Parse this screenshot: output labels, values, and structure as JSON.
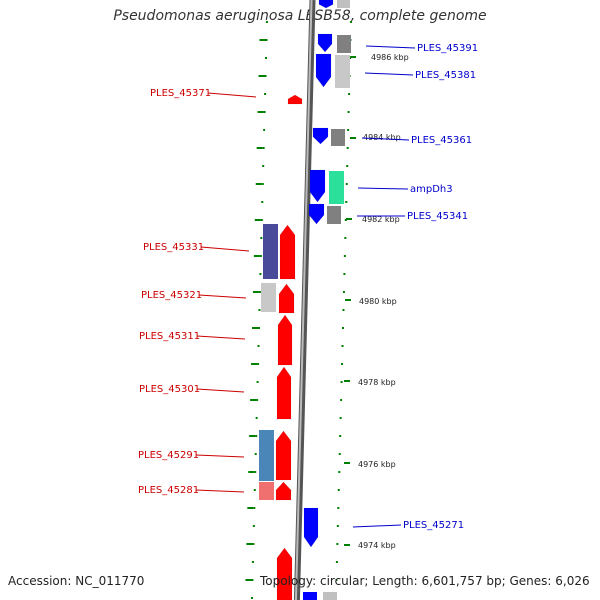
{
  "title": "Pseudomonas aeruginosa LESB58, complete genome",
  "accession": "Accession: NC_011770",
  "topology": "Topology: circular; Length: 6,601,757 bp; Genes: 6,026",
  "colors": {
    "reverse_label": "#cc0000",
    "forward_label": "#0000cc",
    "reverse_cds": "#ff0000",
    "forward_cds": "#0000ff",
    "backbone": "#888888",
    "tick": "#008000"
  },
  "tick_labels": [
    "4986 kbp",
    "4984 kbp",
    "4982 kbp",
    "4980 kbp",
    "4978 kbp",
    "4976 kbp",
    "4974 kbp"
  ],
  "reverse_genes": [
    "PLES_45371",
    "PLES_45331",
    "PLES_45321",
    "PLES_45311",
    "PLES_45301",
    "PLES_45291",
    "PLES_45281"
  ],
  "forward_genes": [
    "PLES_45391",
    "PLES_45381",
    "PLES_45361",
    "ampDh3",
    "PLES_45341",
    "PLES_45271"
  ]
}
